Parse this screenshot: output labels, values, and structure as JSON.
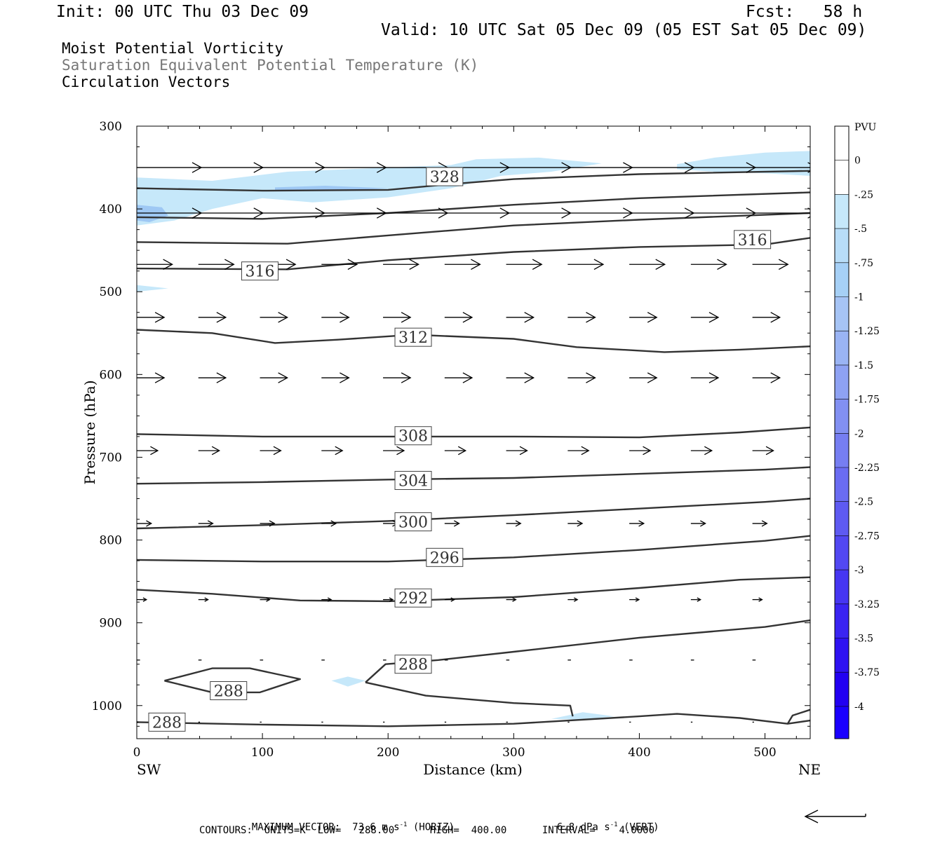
{
  "header": {
    "init": "Init: 00 UTC Thu 03 Dec 09",
    "fcst": "Fcst:   58 h",
    "valid": "Valid: 10 UTC Sat 05 Dec 09 (05 EST Sat 05 Dec 09)"
  },
  "fields": {
    "field1": "Moist Potential Vorticity",
    "field2": "Saturation Equivalent Potential Temperature (K)",
    "field3": "Circulation Vectors"
  },
  "colors": {
    "contour": "#333333",
    "shade_light": "#c6e8fa",
    "shade_mid": "#9ec8f4",
    "axis": "#000000"
  },
  "chart_data": {
    "type": "cross-section",
    "xlabel": "Distance (km)",
    "ylabel": "Pressure (hPa)",
    "xlim": [
      0,
      536
    ],
    "ylim": [
      1040,
      300
    ],
    "x_ticks": [
      0,
      100,
      200,
      300,
      400,
      500
    ],
    "y_ticks": [
      300,
      400,
      500,
      600,
      700,
      800,
      900,
      1000
    ],
    "x_end_labels": {
      "left": "SW",
      "right": "NE"
    },
    "colorbar": {
      "unit": "PVU",
      "labels": [
        "0",
        "-.25",
        "-.5",
        "-.75",
        "-1",
        "-1.25",
        "-1.5",
        "-1.75",
        "-2",
        "-2.25",
        "-2.5",
        "-2.75",
        "-3",
        "-3.25",
        "-3.5",
        "-3.75",
        "-4"
      ],
      "colors": [
        "#ffffff",
        "#ffffff",
        "#c6e8fa",
        "#b8ddf8",
        "#a6d0f6",
        "#a6c4f5",
        "#9ab4f4",
        "#8ea2f3",
        "#8290f2",
        "#767ef2",
        "#6a6cf2",
        "#5e5af2",
        "#5248f2",
        "#4636f2",
        "#3a24f2",
        "#2e12f2",
        "#2200f2",
        "#1a00ff"
      ]
    },
    "contour_labels": [
      "328",
      "316",
      "316",
      "312",
      "308",
      "304",
      "300",
      "296",
      "292",
      "288",
      "288",
      "288"
    ],
    "contours": [
      {
        "theta": 328,
        "points": [
          [
            0,
            375
          ],
          [
            100,
            378
          ],
          [
            200,
            377
          ],
          [
            250,
            370
          ],
          [
            300,
            364
          ],
          [
            400,
            358
          ],
          [
            536,
            354
          ]
        ]
      },
      {
        "theta": 324,
        "points": [
          [
            0,
            410
          ],
          [
            100,
            412
          ],
          [
            200,
            405
          ],
          [
            300,
            395
          ],
          [
            400,
            387
          ],
          [
            536,
            380
          ]
        ]
      },
      {
        "theta": 320,
        "points": [
          [
            0,
            440
          ],
          [
            120,
            442
          ],
          [
            200,
            432
          ],
          [
            300,
            420
          ],
          [
            400,
            413
          ],
          [
            536,
            405
          ]
        ]
      },
      {
        "theta": 316,
        "points": [
          [
            0,
            472
          ],
          [
            120,
            473
          ],
          [
            200,
            462
          ],
          [
            300,
            452
          ],
          [
            400,
            446
          ],
          [
            500,
            443
          ],
          [
            536,
            435
          ]
        ]
      },
      {
        "theta": 312,
        "points": [
          [
            0,
            546
          ],
          [
            60,
            550
          ],
          [
            110,
            562
          ],
          [
            160,
            558
          ],
          [
            220,
            552
          ],
          [
            300,
            557
          ],
          [
            350,
            567
          ],
          [
            420,
            573
          ],
          [
            480,
            570
          ],
          [
            536,
            566
          ]
        ]
      },
      {
        "theta": 308,
        "points": [
          [
            0,
            672
          ],
          [
            100,
            675
          ],
          [
            200,
            675
          ],
          [
            300,
            675
          ],
          [
            400,
            676
          ],
          [
            480,
            670
          ],
          [
            536,
            664
          ]
        ]
      },
      {
        "theta": 304,
        "points": [
          [
            0,
            732
          ],
          [
            100,
            730
          ],
          [
            200,
            727
          ],
          [
            300,
            725
          ],
          [
            400,
            720
          ],
          [
            500,
            715
          ],
          [
            536,
            712
          ]
        ]
      },
      {
        "theta": 300,
        "points": [
          [
            0,
            786
          ],
          [
            100,
            782
          ],
          [
            200,
            777
          ],
          [
            300,
            770
          ],
          [
            400,
            762
          ],
          [
            500,
            754
          ],
          [
            536,
            750
          ]
        ]
      },
      {
        "theta": 296,
        "points": [
          [
            0,
            824
          ],
          [
            100,
            826
          ],
          [
            200,
            826
          ],
          [
            300,
            821
          ],
          [
            400,
            812
          ],
          [
            500,
            801
          ],
          [
            536,
            795
          ]
        ]
      },
      {
        "theta": 292,
        "points": [
          [
            0,
            860
          ],
          [
            60,
            865
          ],
          [
            130,
            873
          ],
          [
            200,
            874
          ],
          [
            300,
            869
          ],
          [
            400,
            858
          ],
          [
            480,
            848
          ],
          [
            536,
            845
          ]
        ]
      },
      {
        "theta": 288,
        "points": [
          [
            182,
            972
          ],
          [
            198,
            950
          ],
          [
            240,
            945
          ],
          [
            300,
            935
          ],
          [
            400,
            918
          ],
          [
            500,
            905
          ],
          [
            536,
            897
          ]
        ]
      },
      {
        "theta": 288,
        "points": [
          [
            182,
            972
          ],
          [
            230,
            988
          ],
          [
            300,
            997
          ],
          [
            345,
            1000
          ],
          [
            347,
            1013
          ]
        ]
      },
      {
        "theta": 288,
        "points": [
          [
            22,
            970
          ],
          [
            60,
            955
          ],
          [
            90,
            955
          ],
          [
            130,
            968
          ],
          [
            98,
            984
          ],
          [
            60,
            984
          ],
          [
            22,
            970
          ]
        ]
      },
      {
        "theta": 288,
        "points": [
          [
            0,
            1020
          ],
          [
            100,
            1023
          ],
          [
            200,
            1025
          ],
          [
            300,
            1022
          ],
          [
            400,
            1013
          ],
          [
            430,
            1010
          ],
          [
            480,
            1015
          ],
          [
            518,
            1022
          ],
          [
            536,
            1018
          ]
        ]
      },
      {
        "theta": 288,
        "points": [
          [
            518,
            1022
          ],
          [
            522,
            1012
          ],
          [
            536,
            1005
          ]
        ]
      }
    ],
    "pv_regions": [
      {
        "level": "-0.25 to -0.5",
        "points": [
          [
            0,
            362
          ],
          [
            60,
            366
          ],
          [
            120,
            355
          ],
          [
            200,
            350
          ],
          [
            250,
            347
          ],
          [
            270,
            340
          ],
          [
            320,
            338
          ],
          [
            370,
            345
          ],
          [
            330,
            355
          ],
          [
            290,
            360
          ],
          [
            250,
            375
          ],
          [
            200,
            386
          ],
          [
            140,
            392
          ],
          [
            100,
            387
          ],
          [
            60,
            400
          ],
          [
            30,
            414
          ],
          [
            0,
            420
          ]
        ]
      },
      {
        "level": "-0.25 to -0.5",
        "points": [
          [
            430,
            346
          ],
          [
            460,
            338
          ],
          [
            500,
            332
          ],
          [
            536,
            330
          ],
          [
            536,
            360
          ],
          [
            500,
            357
          ],
          [
            460,
            355
          ],
          [
            430,
            352
          ]
        ]
      },
      {
        "level": "-0.25 to -0.5",
        "points": [
          [
            0,
            492
          ],
          [
            25,
            496
          ],
          [
            0,
            500
          ]
        ]
      },
      {
        "level": "-0.25 to -0.5",
        "points": [
          [
            155,
            970
          ],
          [
            168,
            965
          ],
          [
            182,
            970
          ],
          [
            168,
            977
          ]
        ]
      },
      {
        "level": "-0.25 to -0.5",
        "points": [
          [
            330,
            1016
          ],
          [
            355,
            1008
          ],
          [
            380,
            1013
          ],
          [
            355,
            1017
          ]
        ]
      },
      {
        "level": "-0.5 to -0.75",
        "points": [
          [
            0,
            395
          ],
          [
            20,
            398
          ],
          [
            25,
            408
          ],
          [
            10,
            416
          ],
          [
            0,
            414
          ]
        ]
      },
      {
        "level": "-0.5 to -0.75",
        "points": [
          [
            110,
            374
          ],
          [
            150,
            372
          ],
          [
            200,
            375
          ],
          [
            160,
            378
          ],
          [
            110,
            378
          ]
        ]
      }
    ],
    "vector_rows": [
      {
        "p": 350,
        "u": 40
      },
      {
        "p": 405,
        "u": 40
      },
      {
        "p": 467,
        "u": 22
      },
      {
        "p": 531,
        "u": 17
      },
      {
        "p": 604,
        "u": 17
      },
      {
        "p": 692,
        "u": 13
      },
      {
        "p": 780,
        "u": 9
      },
      {
        "p": 872,
        "u": 6
      },
      {
        "p": 945,
        "u": 2
      },
      {
        "p": 1020,
        "u": 1
      }
    ],
    "vector_x": [
      0,
      49,
      98,
      147,
      196,
      245,
      294,
      343,
      392,
      441,
      490
    ],
    "max_vector_label": "MAXIMUM VECTOR:  73.6 m s",
    "max_vector_horiz": " (HORIZ)",
    "max_vector_vert": "6.8 dPa s",
    "max_vector_vert_suffix": " (VERT)",
    "contour_info": "CONTOURS:  UNITS=K  LOW=   288.00      HIGH=  400.00      INTERVAL=    4.0000"
  }
}
